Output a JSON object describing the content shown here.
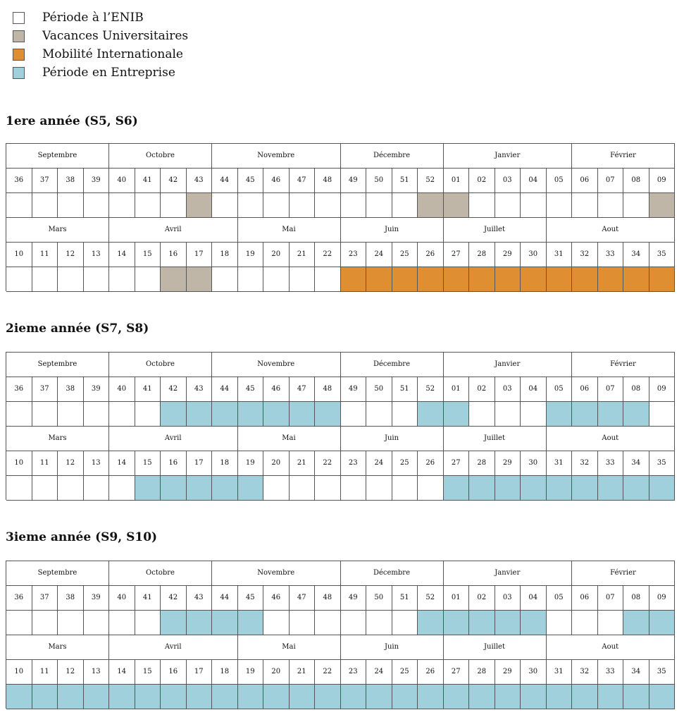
{
  "colors": {
    "enib": "#ffffff",
    "vacances": "#bfb6a7",
    "mobilite": "#df8e31",
    "entreprise": "#a0d0db",
    "border": "#555555"
  },
  "legend": [
    {
      "key": "enib",
      "label": "Période à l’ENIB"
    },
    {
      "key": "vacances",
      "label": "Vacances Universitaires"
    },
    {
      "key": "mobilite",
      "label": "Mobilité Internationale"
    },
    {
      "key": "entreprise",
      "label": "Période en Entreprise"
    }
  ],
  "years": [
    {
      "title": "1ere année (S5, S6)",
      "semesters": [
        {
          "months": [
            {
              "name": "Septembre",
              "weeks": 4
            },
            {
              "name": "Octobre",
              "weeks": 4
            },
            {
              "name": "Novembre",
              "weeks": 5
            },
            {
              "name": "Décembre",
              "weeks": 4
            },
            {
              "name": "Janvier",
              "weeks": 5
            },
            {
              "name": "Février",
              "weeks": 4
            }
          ],
          "weeks": [
            "36",
            "37",
            "38",
            "39",
            "40",
            "41",
            "42",
            "43",
            "44",
            "45",
            "46",
            "47",
            "48",
            "49",
            "50",
            "51",
            "52",
            "01",
            "02",
            "03",
            "04",
            "05",
            "06",
            "07",
            "08",
            "09"
          ],
          "status": [
            "enib",
            "enib",
            "enib",
            "enib",
            "enib",
            "enib",
            "enib",
            "vacances",
            "enib",
            "enib",
            "enib",
            "enib",
            "enib",
            "enib",
            "enib",
            "enib",
            "vacances",
            "vacances",
            "enib",
            "enib",
            "enib",
            "enib",
            "enib",
            "enib",
            "enib",
            "vacances"
          ]
        },
        {
          "months": [
            {
              "name": "Mars",
              "weeks": 4
            },
            {
              "name": "Avril",
              "weeks": 5
            },
            {
              "name": "Mai",
              "weeks": 4
            },
            {
              "name": "Juin",
              "weeks": 4
            },
            {
              "name": "Juillet",
              "weeks": 4
            },
            {
              "name": "Aout",
              "weeks": 5
            }
          ],
          "weeks": [
            "10",
            "11",
            "12",
            "13",
            "14",
            "15",
            "16",
            "17",
            "18",
            "19",
            "20",
            "21",
            "22",
            "23",
            "24",
            "25",
            "26",
            "27",
            "28",
            "29",
            "30",
            "31",
            "32",
            "33",
            "34",
            "35"
          ],
          "status": [
            "enib",
            "enib",
            "enib",
            "enib",
            "enib",
            "enib",
            "vacances",
            "vacances",
            "enib",
            "enib",
            "enib",
            "enib",
            "enib",
            "mobilite",
            "mobilite",
            "mobilite",
            "mobilite",
            "mobilite",
            "mobilite",
            "mobilite",
            "mobilite",
            "mobilite",
            "mobilite",
            "mobilite",
            "mobilite",
            "mobilite"
          ]
        }
      ]
    },
    {
      "title": "2ieme année (S7, S8)",
      "semesters": [
        {
          "months": [
            {
              "name": "Septembre",
              "weeks": 4
            },
            {
              "name": "Octobre",
              "weeks": 4
            },
            {
              "name": "Novembre",
              "weeks": 5
            },
            {
              "name": "Décembre",
              "weeks": 4
            },
            {
              "name": "Janvier",
              "weeks": 5
            },
            {
              "name": "Février",
              "weeks": 4
            }
          ],
          "weeks": [
            "36",
            "37",
            "38",
            "39",
            "40",
            "41",
            "42",
            "43",
            "44",
            "45",
            "46",
            "47",
            "48",
            "49",
            "50",
            "51",
            "52",
            "01",
            "02",
            "03",
            "04",
            "05",
            "06",
            "07",
            "08",
            "09"
          ],
          "status": [
            "enib",
            "enib",
            "enib",
            "enib",
            "enib",
            "enib",
            "entreprise",
            "entreprise",
            "entreprise",
            "entreprise",
            "entreprise",
            "entreprise",
            "entreprise",
            "enib",
            "enib",
            "enib",
            "entreprise",
            "entreprise",
            "enib",
            "enib",
            "enib",
            "entreprise",
            "entreprise",
            "entreprise",
            "entreprise",
            "enib"
          ]
        },
        {
          "months": [
            {
              "name": "Mars",
              "weeks": 4
            },
            {
              "name": "Avril",
              "weeks": 5
            },
            {
              "name": "Mai",
              "weeks": 4
            },
            {
              "name": "Juin",
              "weeks": 4
            },
            {
              "name": "Juillet",
              "weeks": 4
            },
            {
              "name": "Aout",
              "weeks": 5
            }
          ],
          "weeks": [
            "10",
            "11",
            "12",
            "13",
            "14",
            "15",
            "16",
            "17",
            "18",
            "19",
            "20",
            "21",
            "22",
            "23",
            "24",
            "25",
            "26",
            "27",
            "28",
            "29",
            "30",
            "31",
            "32",
            "33",
            "34",
            "35"
          ],
          "status": [
            "enib",
            "enib",
            "enib",
            "enib",
            "enib",
            "entreprise",
            "entreprise",
            "entreprise",
            "entreprise",
            "entreprise",
            "enib",
            "enib",
            "enib",
            "enib",
            "enib",
            "enib",
            "enib",
            "entreprise",
            "entreprise",
            "entreprise",
            "entreprise",
            "entreprise",
            "entreprise",
            "entreprise",
            "entreprise",
            "entreprise"
          ]
        }
      ]
    },
    {
      "title": "3ieme année (S9, S10)",
      "semesters": [
        {
          "months": [
            {
              "name": "Septembre",
              "weeks": 4
            },
            {
              "name": "Octobre",
              "weeks": 4
            },
            {
              "name": "Novembre",
              "weeks": 5
            },
            {
              "name": "Décembre",
              "weeks": 4
            },
            {
              "name": "Janvier",
              "weeks": 5
            },
            {
              "name": "Février",
              "weeks": 4
            }
          ],
          "weeks": [
            "36",
            "37",
            "38",
            "39",
            "40",
            "41",
            "42",
            "43",
            "44",
            "45",
            "46",
            "47",
            "48",
            "49",
            "50",
            "51",
            "52",
            "01",
            "02",
            "03",
            "04",
            "05",
            "06",
            "07",
            "08",
            "09"
          ],
          "status": [
            "enib",
            "enib",
            "enib",
            "enib",
            "enib",
            "enib",
            "entreprise",
            "entreprise",
            "entreprise",
            "entreprise",
            "enib",
            "enib",
            "enib",
            "enib",
            "enib",
            "enib",
            "entreprise",
            "entreprise",
            "entreprise",
            "entreprise",
            "entreprise",
            "enib",
            "enib",
            "enib",
            "entreprise",
            "entreprise"
          ]
        },
        {
          "months": [
            {
              "name": "Mars",
              "weeks": 4
            },
            {
              "name": "Avril",
              "weeks": 5
            },
            {
              "name": "Mai",
              "weeks": 4
            },
            {
              "name": "Juin",
              "weeks": 4
            },
            {
              "name": "Juillet",
              "weeks": 4
            },
            {
              "name": "Aout",
              "weeks": 5
            }
          ],
          "weeks": [
            "10",
            "11",
            "12",
            "13",
            "14",
            "15",
            "16",
            "17",
            "18",
            "19",
            "20",
            "21",
            "22",
            "23",
            "24",
            "25",
            "26",
            "27",
            "28",
            "29",
            "30",
            "31",
            "32",
            "33",
            "34",
            "35"
          ],
          "status": [
            "entreprise",
            "entreprise",
            "entreprise",
            "entreprise",
            "entreprise",
            "entreprise",
            "entreprise",
            "entreprise",
            "entreprise",
            "entreprise",
            "entreprise",
            "entreprise",
            "entreprise",
            "entreprise",
            "entreprise",
            "entreprise",
            "entreprise",
            "entreprise",
            "entreprise",
            "entreprise",
            "entreprise",
            "entreprise",
            "entreprise",
            "entreprise",
            "entreprise",
            "entreprise"
          ]
        }
      ]
    }
  ]
}
